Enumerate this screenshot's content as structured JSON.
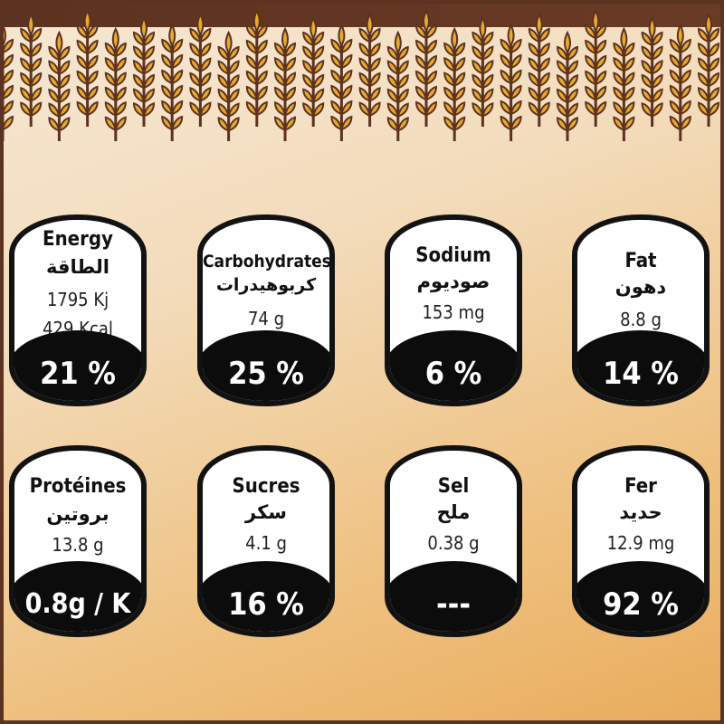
{
  "colors": {
    "band": "#5c3220",
    "wheat": "#e8a92e",
    "card_border": "#121212",
    "badge": "#0c0c0c"
  },
  "cards": [
    {
      "title": "Energy",
      "arabic": "الطاقة",
      "values": [
        "1795 Kj",
        "429 Kcal"
      ],
      "percent": "21 %"
    },
    {
      "title": "Carbohydrates",
      "arabic": "كربوهيدرات",
      "values": [
        "74 g"
      ],
      "percent": "25 %"
    },
    {
      "title": "Sodium",
      "arabic": "صوديوم",
      "values": [
        "153 mg"
      ],
      "percent": "6 %"
    },
    {
      "title": "Fat",
      "arabic": "دهون",
      "values": [
        "8.8 g"
      ],
      "percent": "14 %"
    },
    {
      "title": "Protéines",
      "arabic": "بروتين",
      "values": [
        "13.8 g"
      ],
      "percent": "0.8g / K"
    },
    {
      "title": "Sucres",
      "arabic": "سكر",
      "values": [
        "4.1 g"
      ],
      "percent": "16 %"
    },
    {
      "title": "Sel",
      "arabic": "ملح",
      "values": [
        "0.38 g"
      ],
      "percent": "---"
    },
    {
      "title": "Fer",
      "arabic": "حديد",
      "values": [
        "12.9 mg"
      ],
      "percent": "92 %"
    }
  ]
}
